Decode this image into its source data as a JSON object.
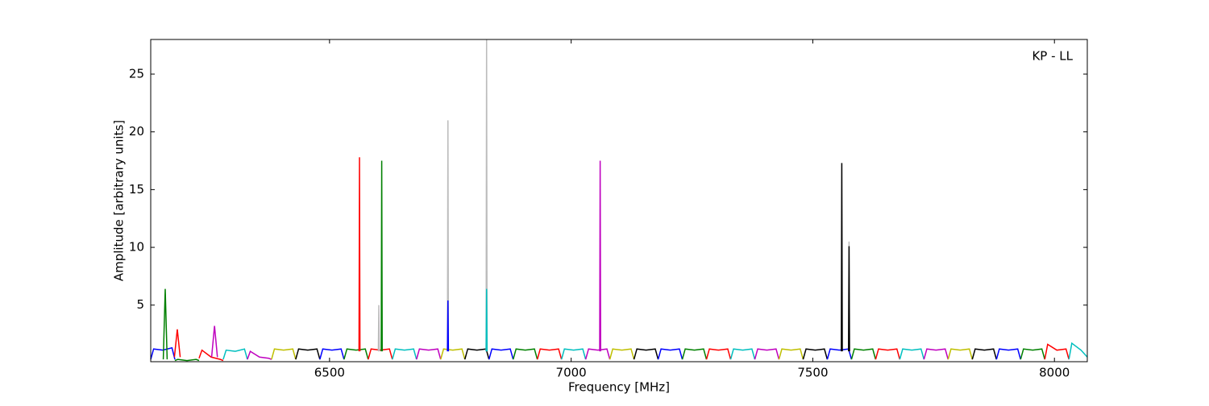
{
  "chart_data": {
    "type": "line",
    "annotation": "KP - LL",
    "x_label": "Frequency [MHz]",
    "y_label": "Amplitude [arbitrary units]",
    "xlim": [
      6130,
      8068
    ],
    "ylim": [
      0.1,
      28
    ],
    "xticks": [
      6500,
      7000,
      7500,
      8000
    ],
    "yticks": [
      5,
      10,
      15,
      20,
      25
    ],
    "grid": false,
    "series": [
      {
        "color": "#0000ff",
        "x": [
          6130,
          6136,
          6155,
          6174,
          6180
        ],
        "values": [
          0.3,
          1.2,
          1.1,
          1.3,
          0.3
        ]
      },
      {
        "color": "#008000",
        "x": [
          6180,
          6186,
          6205,
          6224,
          6230
        ],
        "values": [
          0.2,
          0.3,
          0.2,
          0.3,
          0.2
        ]
      },
      {
        "color": "#ff0000",
        "x": [
          6230,
          6236,
          6255,
          6274,
          6280
        ],
        "values": [
          0.4,
          1.1,
          0.5,
          0.3,
          0.2
        ]
      },
      {
        "color": "#00bfbf",
        "x": [
          6280,
          6286,
          6305,
          6324,
          6330
        ],
        "values": [
          0.3,
          1.1,
          1.0,
          1.2,
          0.3
        ]
      },
      {
        "color": "#bf00bf",
        "x": [
          6330,
          6336,
          6355,
          6374,
          6380
        ],
        "values": [
          0.3,
          1.0,
          0.5,
          0.4,
          0.3
        ]
      },
      {
        "color": "#bfbf00",
        "x": [
          6380,
          6386,
          6405,
          6424,
          6430
        ],
        "values": [
          0.3,
          1.2,
          1.1,
          1.2,
          0.3
        ]
      },
      {
        "color": "#000000",
        "x": [
          6430,
          6436,
          6455,
          6474,
          6480
        ],
        "values": [
          0.3,
          1.2,
          1.1,
          1.2,
          0.3
        ]
      },
      {
        "color": "#0000ff",
        "x": [
          6480,
          6486,
          6505,
          6524,
          6530
        ],
        "values": [
          0.3,
          1.2,
          1.1,
          1.2,
          0.3
        ]
      },
      {
        "color": "#008000",
        "x": [
          6530,
          6536,
          6555,
          6574,
          6580
        ],
        "values": [
          0.3,
          1.2,
          1.1,
          1.2,
          0.3
        ]
      },
      {
        "color": "#ff0000",
        "x": [
          6580,
          6586,
          6605,
          6624,
          6630
        ],
        "values": [
          0.3,
          1.2,
          1.1,
          1.2,
          0.3
        ]
      },
      {
        "color": "#00bfbf",
        "x": [
          6630,
          6636,
          6655,
          6674,
          6680
        ],
        "values": [
          0.3,
          1.2,
          1.1,
          1.2,
          0.3
        ]
      },
      {
        "color": "#bf00bf",
        "x": [
          6680,
          6686,
          6705,
          6724,
          6730
        ],
        "values": [
          0.3,
          1.2,
          1.1,
          1.2,
          0.3
        ]
      },
      {
        "color": "#bfbf00",
        "x": [
          6730,
          6736,
          6755,
          6774,
          6780
        ],
        "values": [
          0.3,
          1.2,
          1.1,
          1.2,
          0.3
        ]
      },
      {
        "color": "#000000",
        "x": [
          6780,
          6786,
          6805,
          6824,
          6830
        ],
        "values": [
          0.3,
          1.2,
          1.1,
          1.2,
          0.3
        ]
      },
      {
        "color": "#0000ff",
        "x": [
          6830,
          6836,
          6855,
          6874,
          6880
        ],
        "values": [
          0.3,
          1.2,
          1.1,
          1.2,
          0.3
        ]
      },
      {
        "color": "#008000",
        "x": [
          6880,
          6886,
          6905,
          6924,
          6930
        ],
        "values": [
          0.3,
          1.2,
          1.1,
          1.2,
          0.3
        ]
      },
      {
        "color": "#ff0000",
        "x": [
          6930,
          6936,
          6955,
          6974,
          6980
        ],
        "values": [
          0.3,
          1.2,
          1.1,
          1.2,
          0.3
        ]
      },
      {
        "color": "#00bfbf",
        "x": [
          6980,
          6986,
          7005,
          7024,
          7030
        ],
        "values": [
          0.3,
          1.2,
          1.1,
          1.2,
          0.3
        ]
      },
      {
        "color": "#bf00bf",
        "x": [
          7030,
          7036,
          7055,
          7074,
          7080
        ],
        "values": [
          0.3,
          1.2,
          1.1,
          1.2,
          0.3
        ]
      },
      {
        "color": "#bfbf00",
        "x": [
          7080,
          7086,
          7105,
          7124,
          7130
        ],
        "values": [
          0.3,
          1.2,
          1.1,
          1.2,
          0.3
        ]
      },
      {
        "color": "#000000",
        "x": [
          7130,
          7136,
          7155,
          7174,
          7180
        ],
        "values": [
          0.3,
          1.2,
          1.1,
          1.2,
          0.3
        ]
      },
      {
        "color": "#0000ff",
        "x": [
          7180,
          7186,
          7205,
          7224,
          7230
        ],
        "values": [
          0.3,
          1.2,
          1.1,
          1.2,
          0.3
        ]
      },
      {
        "color": "#008000",
        "x": [
          7230,
          7236,
          7255,
          7274,
          7280
        ],
        "values": [
          0.3,
          1.2,
          1.1,
          1.2,
          0.3
        ]
      },
      {
        "color": "#ff0000",
        "x": [
          7280,
          7286,
          7305,
          7324,
          7330
        ],
        "values": [
          0.3,
          1.2,
          1.1,
          1.2,
          0.3
        ]
      },
      {
        "color": "#00bfbf",
        "x": [
          7330,
          7336,
          7355,
          7374,
          7380
        ],
        "values": [
          0.3,
          1.2,
          1.1,
          1.2,
          0.3
        ]
      },
      {
        "color": "#bf00bf",
        "x": [
          7380,
          7386,
          7405,
          7424,
          7430
        ],
        "values": [
          0.3,
          1.2,
          1.1,
          1.2,
          0.3
        ]
      },
      {
        "color": "#bfbf00",
        "x": [
          7430,
          7436,
          7455,
          7474,
          7480
        ],
        "values": [
          0.3,
          1.2,
          1.1,
          1.2,
          0.3
        ]
      },
      {
        "color": "#000000",
        "x": [
          7480,
          7486,
          7505,
          7524,
          7530
        ],
        "values": [
          0.3,
          1.2,
          1.1,
          1.2,
          0.3
        ]
      },
      {
        "color": "#0000ff",
        "x": [
          7530,
          7536,
          7555,
          7574,
          7580
        ],
        "values": [
          0.3,
          1.2,
          1.1,
          1.2,
          0.3
        ]
      },
      {
        "color": "#008000",
        "x": [
          7580,
          7586,
          7605,
          7624,
          7630
        ],
        "values": [
          0.3,
          1.2,
          1.1,
          1.2,
          0.3
        ]
      },
      {
        "color": "#ff0000",
        "x": [
          7630,
          7636,
          7655,
          7674,
          7680
        ],
        "values": [
          0.3,
          1.2,
          1.1,
          1.2,
          0.3
        ]
      },
      {
        "color": "#00bfbf",
        "x": [
          7680,
          7686,
          7705,
          7724,
          7730
        ],
        "values": [
          0.3,
          1.2,
          1.1,
          1.2,
          0.3
        ]
      },
      {
        "color": "#bf00bf",
        "x": [
          7730,
          7736,
          7755,
          7774,
          7780
        ],
        "values": [
          0.3,
          1.2,
          1.1,
          1.2,
          0.3
        ]
      },
      {
        "color": "#bfbf00",
        "x": [
          7780,
          7786,
          7805,
          7824,
          7830
        ],
        "values": [
          0.3,
          1.2,
          1.1,
          1.2,
          0.3
        ]
      },
      {
        "color": "#000000",
        "x": [
          7830,
          7836,
          7855,
          7874,
          7880
        ],
        "values": [
          0.3,
          1.2,
          1.1,
          1.2,
          0.3
        ]
      },
      {
        "color": "#0000ff",
        "x": [
          7880,
          7886,
          7905,
          7924,
          7930
        ],
        "values": [
          0.3,
          1.2,
          1.1,
          1.2,
          0.3
        ]
      },
      {
        "color": "#008000",
        "x": [
          7930,
          7936,
          7955,
          7974,
          7980
        ],
        "values": [
          0.3,
          1.2,
          1.1,
          1.2,
          0.3
        ]
      },
      {
        "color": "#ff0000",
        "x": [
          7980,
          7986,
          8005,
          8024,
          8030
        ],
        "values": [
          0.3,
          1.6,
          1.1,
          1.2,
          0.3
        ]
      },
      {
        "color": "#00bfbf",
        "x": [
          8030,
          8036,
          8055,
          8068
        ],
        "values": [
          0.3,
          1.7,
          1.1,
          0.5
        ]
      },
      {
        "color": "#bbbbbb",
        "x": [
          6601,
          6602,
          6603
        ],
        "values": [
          1.0,
          5.0,
          1.0
        ]
      },
      {
        "color": "#bbbbbb",
        "x": [
          6744,
          6745,
          6746
        ],
        "values": [
          1.0,
          21.0,
          1.0
        ]
      },
      {
        "color": "#bbbbbb",
        "x": [
          6824,
          6825,
          6826
        ],
        "values": [
          1.0,
          28.0,
          1.0
        ]
      },
      {
        "color": "#bbbbbb",
        "x": [
          7574,
          7575,
          7576
        ],
        "values": [
          1.0,
          10.5,
          1.0
        ]
      },
      {
        "color": "#008000",
        "x": [
          6156,
          6160,
          6164
        ],
        "values": [
          0.3,
          6.4,
          0.3
        ]
      },
      {
        "color": "#ff0000",
        "x": [
          6179,
          6185,
          6191
        ],
        "values": [
          0.5,
          2.9,
          0.5
        ]
      },
      {
        "color": "#bf00bf",
        "x": [
          6256,
          6262,
          6268
        ],
        "values": [
          0.5,
          3.2,
          0.5
        ]
      },
      {
        "color": "#ff0000",
        "x": [
          6561,
          6562,
          6563
        ],
        "values": [
          1.0,
          17.8,
          1.0
        ]
      },
      {
        "color": "#008000",
        "x": [
          6607,
          6608,
          6609
        ],
        "values": [
          1.0,
          17.5,
          1.0
        ]
      },
      {
        "color": "#0000ff",
        "x": [
          6744,
          6745,
          6746
        ],
        "values": [
          1.0,
          5.4,
          1.0
        ]
      },
      {
        "color": "#00bfbf",
        "x": [
          6824,
          6825,
          6826
        ],
        "values": [
          1.0,
          6.4,
          1.0
        ]
      },
      {
        "color": "#bf00bf",
        "x": [
          7059,
          7060,
          7061
        ],
        "values": [
          1.0,
          17.5,
          1.0
        ]
      },
      {
        "color": "#000000",
        "x": [
          7559,
          7560,
          7561
        ],
        "values": [
          1.0,
          17.3,
          1.0
        ]
      },
      {
        "color": "#000000",
        "x": [
          7574,
          7575,
          7576
        ],
        "values": [
          1.0,
          10.1,
          1.0
        ]
      }
    ]
  }
}
